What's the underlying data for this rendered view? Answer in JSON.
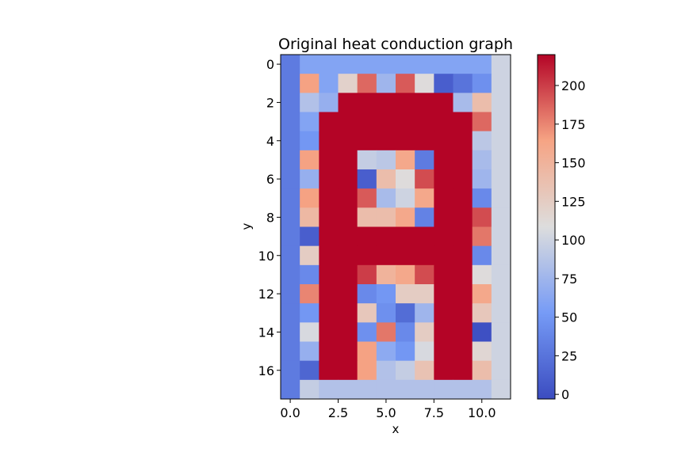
{
  "chart_data": {
    "type": "heatmap",
    "title": "Original heat conduction graph",
    "xlabel": "x",
    "ylabel": "y",
    "colormap": "coolwarm",
    "vmin": -3,
    "vmax": 220,
    "x_ticks": [
      0,
      2.5,
      5,
      7.5,
      10
    ],
    "x_tick_labels": [
      "0.0",
      "2.5",
      "5.0",
      "7.5",
      "10.0"
    ],
    "y_ticks": [
      0,
      2,
      4,
      6,
      8,
      10,
      12,
      14,
      16
    ],
    "y_tick_labels": [
      "0",
      "2",
      "4",
      "6",
      "8",
      "10",
      "12",
      "14",
      "16"
    ],
    "colorbar_ticks": [
      0,
      25,
      50,
      75,
      100,
      125,
      150,
      175,
      200
    ],
    "colorbar_tick_labels": [
      "0",
      "25",
      "50",
      "75",
      "100",
      "125",
      "150",
      "175",
      "200"
    ],
    "grid": [
      [
        30,
        60,
        60,
        60,
        60,
        60,
        60,
        60,
        60,
        60,
        60,
        100
      ],
      [
        30,
        165,
        60,
        120,
        185,
        75,
        190,
        110,
        10,
        25,
        45,
        100
      ],
      [
        30,
        85,
        70,
        220,
        220,
        220,
        220,
        220,
        220,
        80,
        140,
        100
      ],
      [
        30,
        60,
        220,
        220,
        220,
        220,
        220,
        220,
        220,
        220,
        185,
        100
      ],
      [
        30,
        50,
        220,
        220,
        220,
        220,
        220,
        220,
        220,
        220,
        90,
        100
      ],
      [
        30,
        165,
        220,
        220,
        95,
        90,
        160,
        30,
        220,
        220,
        80,
        100
      ],
      [
        30,
        70,
        220,
        220,
        10,
        140,
        110,
        195,
        220,
        220,
        75,
        100
      ],
      [
        30,
        165,
        220,
        220,
        190,
        80,
        100,
        160,
        220,
        220,
        40,
        100
      ],
      [
        30,
        145,
        220,
        220,
        140,
        140,
        160,
        35,
        220,
        220,
        195,
        100
      ],
      [
        30,
        10,
        220,
        220,
        220,
        220,
        220,
        220,
        220,
        220,
        180,
        100
      ],
      [
        30,
        125,
        220,
        220,
        220,
        220,
        220,
        220,
        220,
        220,
        40,
        100
      ],
      [
        30,
        40,
        220,
        220,
        200,
        150,
        160,
        195,
        220,
        220,
        110,
        100
      ],
      [
        30,
        175,
        220,
        220,
        40,
        50,
        125,
        125,
        220,
        220,
        160,
        100
      ],
      [
        30,
        50,
        220,
        220,
        130,
        45,
        20,
        75,
        220,
        220,
        130,
        100
      ],
      [
        30,
        105,
        220,
        220,
        45,
        180,
        40,
        125,
        220,
        220,
        0,
        100
      ],
      [
        30,
        70,
        220,
        220,
        165,
        65,
        50,
        105,
        220,
        220,
        115,
        100
      ],
      [
        30,
        15,
        220,
        220,
        165,
        85,
        95,
        135,
        220,
        220,
        140,
        100
      ],
      [
        30,
        95,
        85,
        85,
        85,
        85,
        85,
        85,
        85,
        85,
        85,
        100
      ]
    ]
  }
}
